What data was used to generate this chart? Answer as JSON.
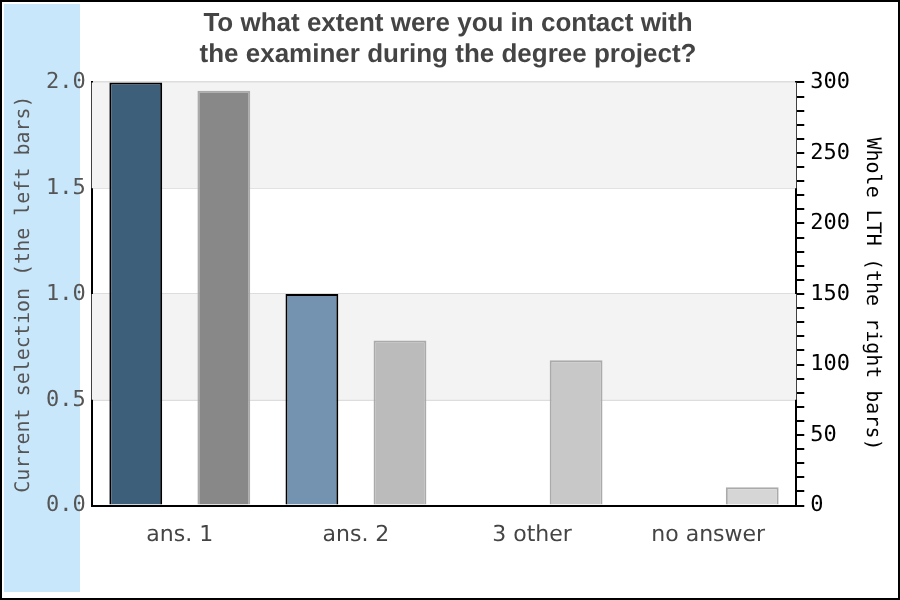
{
  "chart_data": {
    "type": "bar",
    "title": "To what extent were you in contact with\nthe examiner during the degree project?",
    "ylabel": "Current selection (the left bars)",
    "y2label": "Whole LTH (the right bars)",
    "categories": [
      "ans. 1",
      "ans. 2",
      "3 other",
      "no answer"
    ],
    "series": [
      {
        "colors": [
          "#3e5f7a",
          "#7393b0",
          "#7393b0",
          "#7393b0"
        ],
        "values": [
          2,
          1,
          0,
          0
        ],
        "axis": "y"
      },
      {
        "colors": [
          "#888888",
          "#bbbbbb",
          "#c8c8c8",
          "#d6d6d6"
        ],
        "values": [
          294,
          117,
          103,
          13
        ],
        "axis": "y2"
      }
    ],
    "ylim": [
      0,
      2
    ],
    "yticks": [
      {
        "value": 0,
        "label": "0.0"
      },
      {
        "value": 0.5,
        "label": "0.5"
      },
      {
        "value": 1,
        "label": "1.0"
      },
      {
        "value": 1.5,
        "label": "1.5"
      },
      {
        "value": 2,
        "label": "2.0"
      }
    ],
    "y2lim": [
      0,
      300
    ],
    "y2ticks": [
      0,
      {
        "value": 10,
        "label": null
      },
      {
        "value": 20,
        "label": null
      },
      {
        "value": 30,
        "label": null
      },
      {
        "value": 40,
        "label": null
      },
      50,
      {
        "value": 60,
        "label": null
      },
      {
        "value": 70,
        "label": null
      },
      {
        "value": 80,
        "label": null
      },
      {
        "value": 90,
        "label": null
      },
      100,
      {
        "value": 110,
        "label": null
      },
      {
        "value": 120,
        "label": null
      },
      {
        "value": 130,
        "label": null
      },
      {
        "value": 140,
        "label": null
      },
      150,
      {
        "value": 160,
        "label": null
      },
      {
        "value": 170,
        "label": null
      },
      {
        "value": 180,
        "label": null
      },
      {
        "value": 190,
        "label": null
      },
      200,
      {
        "value": 210,
        "label": null
      },
      {
        "value": 220,
        "label": null
      },
      {
        "value": 230,
        "label": null
      },
      {
        "value": 240,
        "label": null
      },
      250,
      {
        "value": 260,
        "label": null
      },
      {
        "value": 270,
        "label": null
      },
      {
        "value": 280,
        "label": null
      },
      {
        "value": 290,
        "label": null
      },
      300
    ],
    "grid": "y",
    "legend": false
  }
}
